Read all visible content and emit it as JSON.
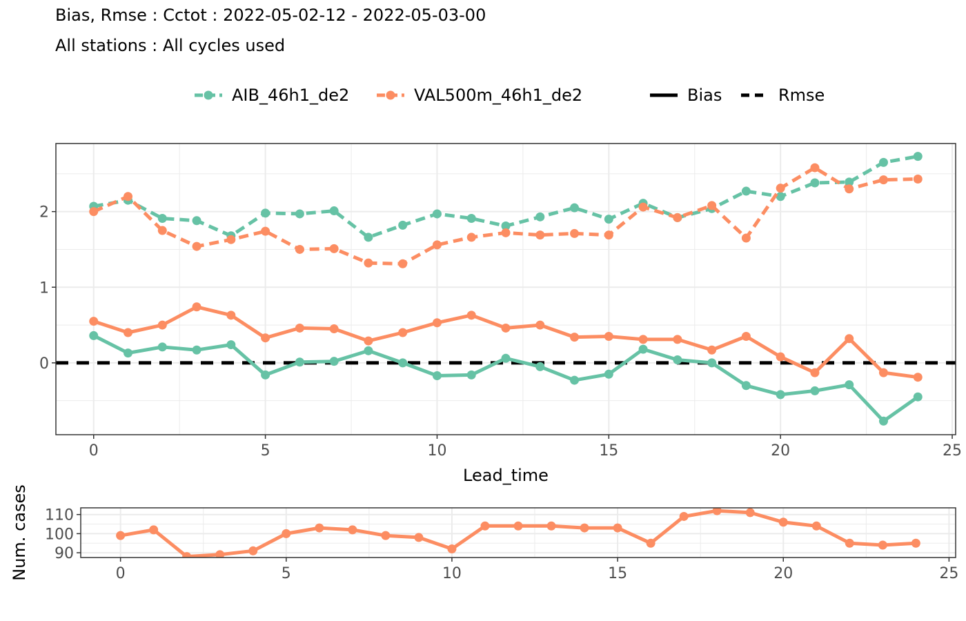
{
  "title": "Bias, Rmse : Cctot : 2022-05-02-12 - 2022-05-03-00",
  "subtitle": "All stations : All cycles used",
  "colors": {
    "AIB_46h1_de2": "#66c2a5",
    "VAL500m_46h1_de2": "#fc8d62",
    "reference": "#000000"
  },
  "legend": {
    "models": [
      "AIB_46h1_de2",
      "VAL500m_46h1_de2"
    ],
    "linetypes": [
      "Bias",
      "Rmse"
    ]
  },
  "chart_data": [
    {
      "type": "line",
      "xlabel": "Lead_time",
      "ylabel": "",
      "xlim": [
        -1.1,
        25.1
      ],
      "ylim": [
        -0.95,
        2.9
      ],
      "xticks": [
        0,
        5,
        10,
        15,
        20,
        25
      ],
      "yticks": [
        0,
        1,
        2
      ],
      "grid": true,
      "legend_position": "top",
      "reference_line": {
        "y": 0,
        "style": "dashed"
      },
      "x": [
        0,
        1,
        2,
        3,
        4,
        5,
        6,
        7,
        8,
        9,
        10,
        11,
        12,
        13,
        14,
        15,
        16,
        17,
        18,
        19,
        20,
        21,
        22,
        23,
        24
      ],
      "series": [
        {
          "name": "AIB_46h1_de2",
          "score": "Bias",
          "values": [
            0.36,
            0.13,
            0.21,
            0.17,
            0.24,
            -0.16,
            0.01,
            0.02,
            0.16,
            0.0,
            -0.17,
            -0.16,
            0.06,
            -0.05,
            -0.23,
            -0.15,
            0.18,
            0.04,
            0.0,
            -0.3,
            -0.42,
            -0.37,
            -0.29,
            -0.77,
            -0.45
          ]
        },
        {
          "name": "VAL500m_46h1_de2",
          "score": "Bias",
          "values": [
            0.55,
            0.4,
            0.5,
            0.74,
            0.63,
            0.33,
            0.46,
            0.45,
            0.29,
            0.4,
            0.53,
            0.63,
            0.46,
            0.5,
            0.34,
            0.35,
            0.31,
            0.31,
            0.17,
            0.35,
            0.08,
            -0.13,
            0.32,
            -0.13,
            -0.19
          ]
        },
        {
          "name": "AIB_46h1_de2",
          "score": "Rmse",
          "values": [
            2.07,
            2.15,
            1.91,
            1.88,
            1.68,
            1.98,
            1.97,
            2.01,
            1.66,
            1.82,
            1.97,
            1.91,
            1.81,
            1.93,
            2.05,
            1.9,
            2.11,
            1.92,
            2.04,
            2.27,
            2.2,
            2.38,
            2.39,
            2.65,
            2.73
          ]
        },
        {
          "name": "VAL500m_46h1_de2",
          "score": "Rmse",
          "values": [
            2.0,
            2.2,
            1.75,
            1.54,
            1.63,
            1.74,
            1.5,
            1.51,
            1.32,
            1.31,
            1.56,
            1.66,
            1.72,
            1.69,
            1.71,
            1.69,
            2.06,
            1.92,
            2.08,
            1.65,
            2.31,
            2.58,
            2.3,
            2.42,
            2.43
          ]
        }
      ]
    },
    {
      "type": "line",
      "xlabel": "",
      "ylabel": "Num. cases",
      "xlim": [
        -1.2,
        25.2
      ],
      "ylim": [
        87.5,
        113.5
      ],
      "xticks": [
        0,
        5,
        10,
        15,
        20,
        25
      ],
      "yticks": [
        90,
        100,
        110
      ],
      "grid": true,
      "x": [
        0,
        1,
        2,
        3,
        4,
        5,
        6,
        7,
        8,
        9,
        10,
        11,
        12,
        13,
        14,
        15,
        16,
        17,
        18,
        19,
        20,
        21,
        22,
        23,
        24
      ],
      "series": [
        {
          "name": "VAL500m_46h1_de2",
          "values": [
            99,
            102,
            88,
            89,
            91,
            100,
            103,
            102,
            99,
            98,
            92,
            104,
            104,
            104,
            103,
            103,
            95,
            109,
            112,
            111,
            106,
            104,
            95,
            94,
            95
          ]
        }
      ]
    }
  ]
}
